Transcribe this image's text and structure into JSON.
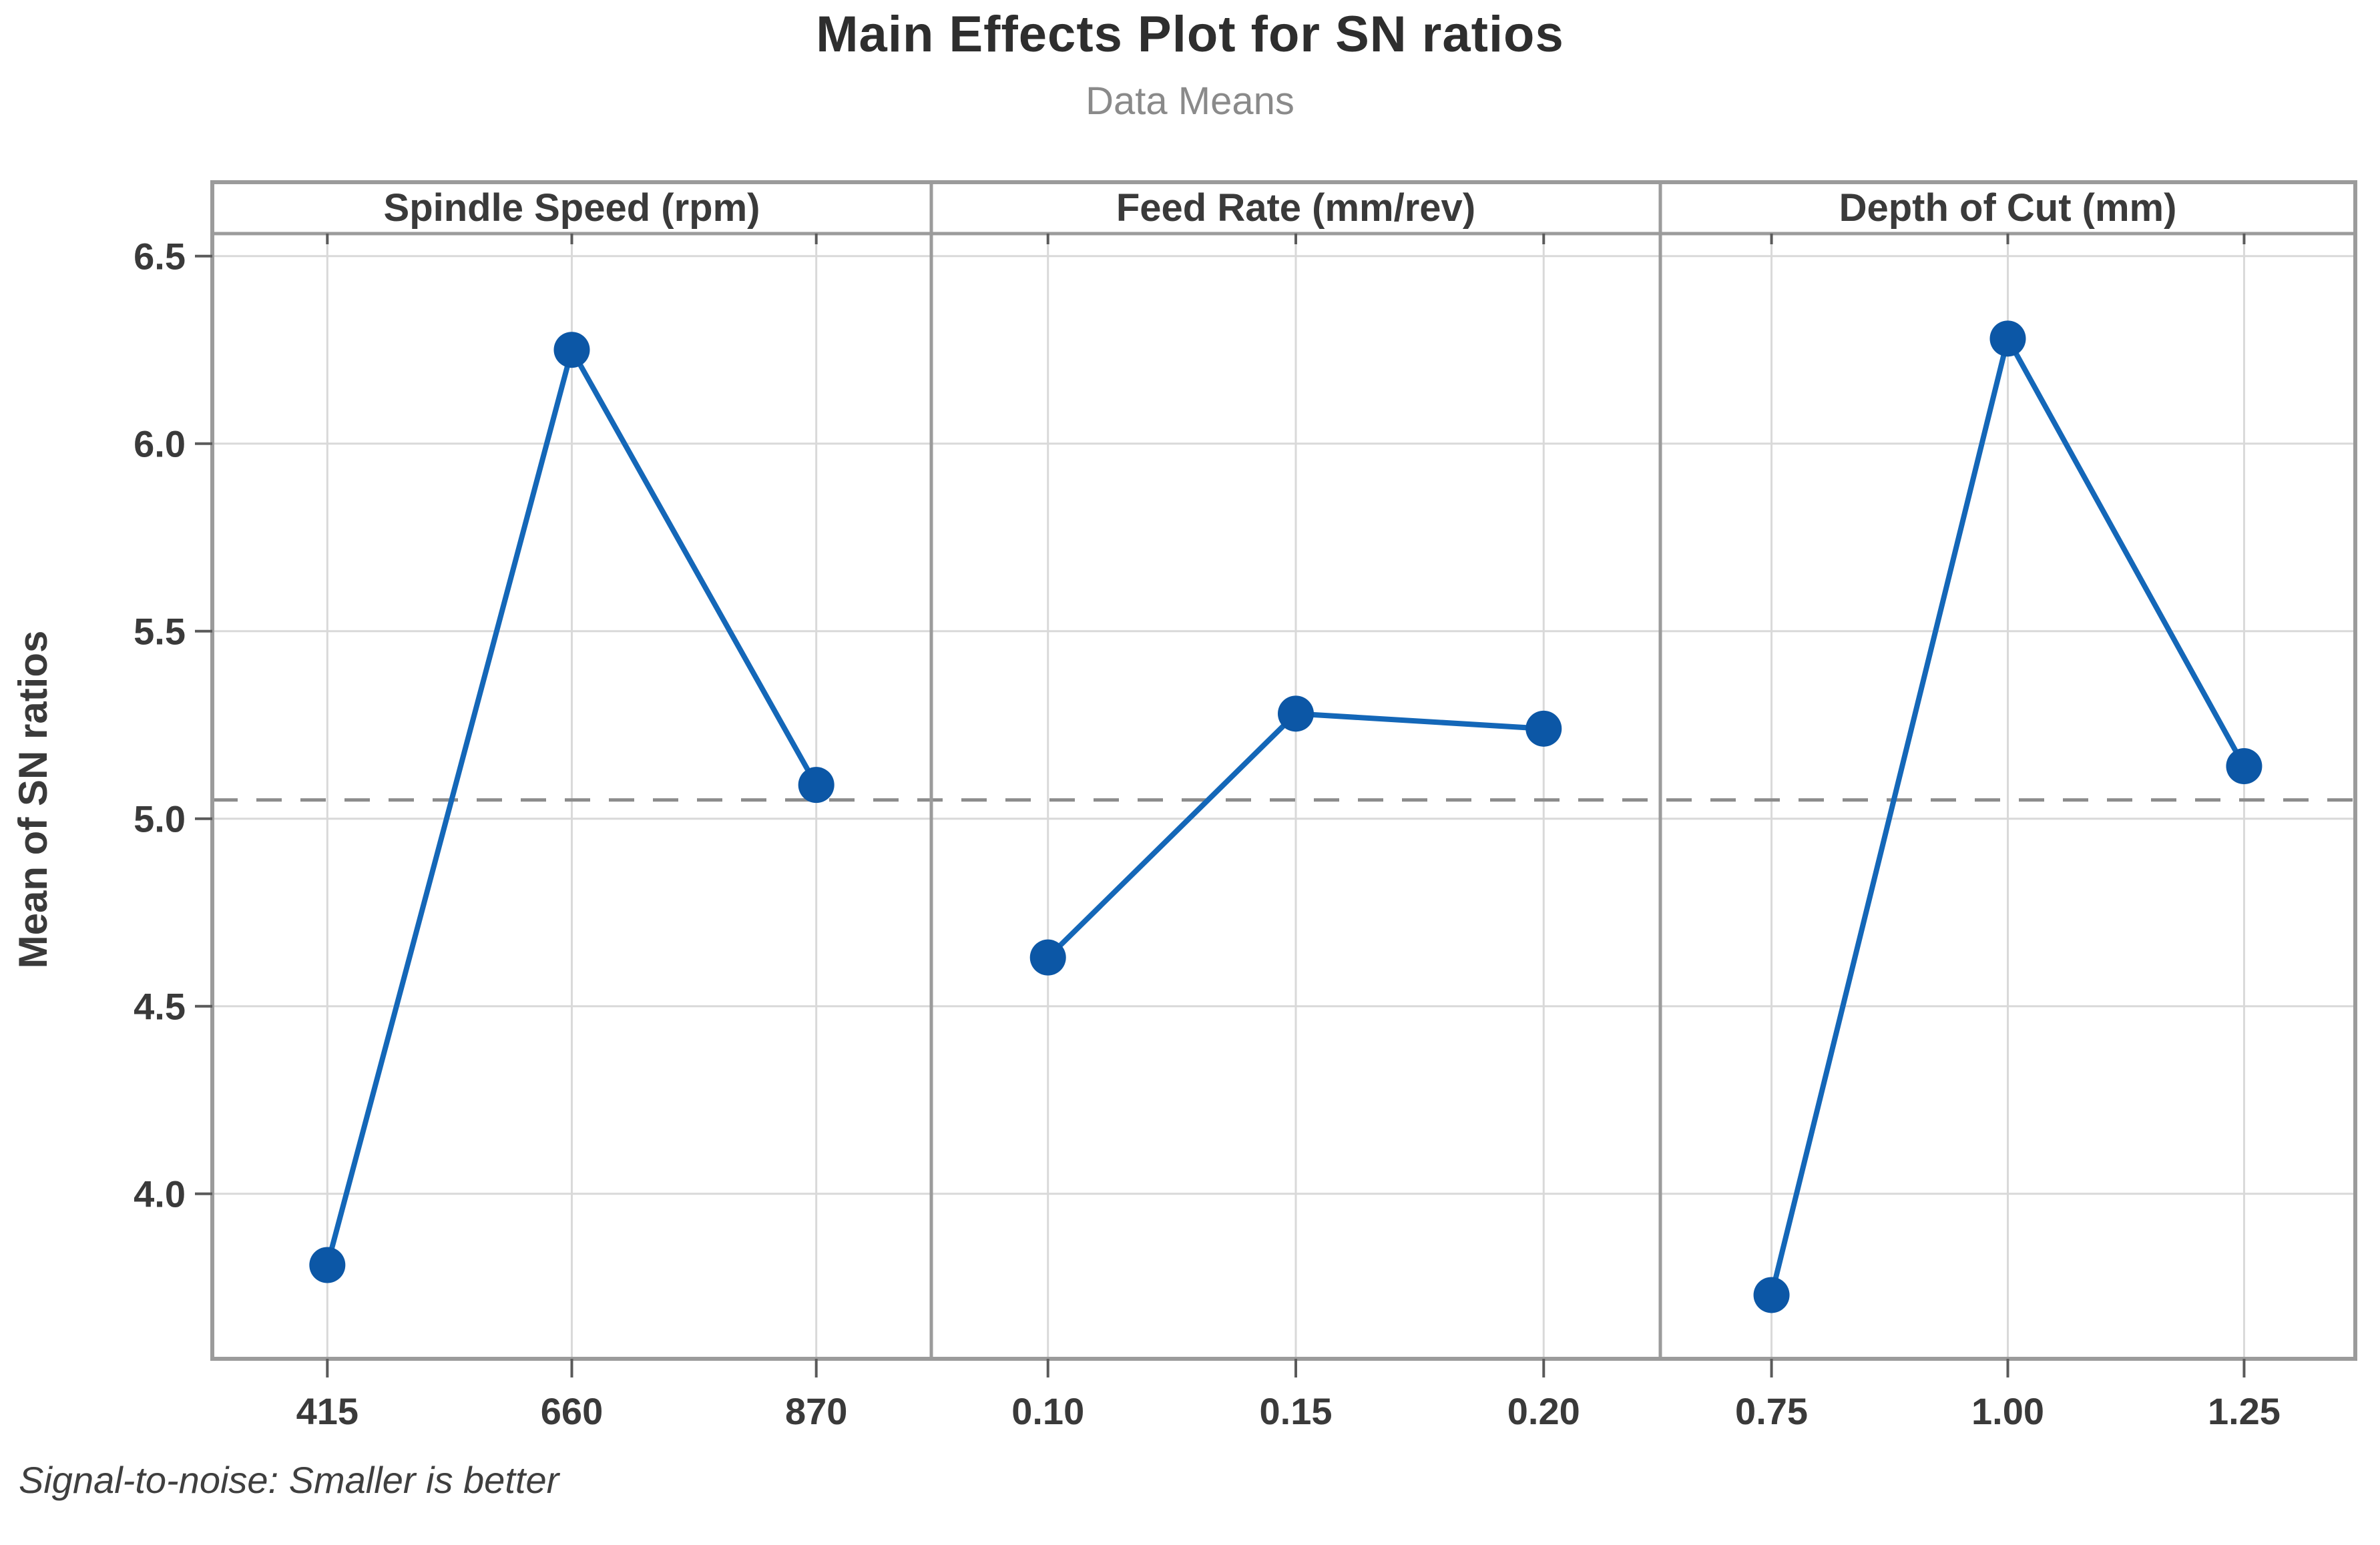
{
  "title": "Main Effects Plot for SN ratios",
  "subtitle": "Data Means",
  "footer": "Signal-to-noise: Smaller is better",
  "y_axis": {
    "label": "Mean of SN ratios"
  },
  "colors": {
    "line": "#1467b8",
    "marker": "#0c57a6",
    "grid": "#d9d9d9",
    "frame": "#9b9b9b",
    "tick": "#5a5a5a",
    "reference": "#8c8c8c",
    "title": "#2e2e2e",
    "subtitle": "#8a8a8a",
    "text": "#3a3a3a"
  },
  "chart_data": {
    "type": "line",
    "title": "Main Effects Plot for SN ratios",
    "subtitle": "Data Means",
    "ylabel": "Mean of SN ratios",
    "ylim": [
      3.56,
      6.56
    ],
    "yticks": [
      6.5,
      6.0,
      5.5,
      5.0,
      4.5,
      4.0
    ],
    "reference_line": 5.05,
    "reference_line_meaning": "overall mean of SN ratios",
    "grid": true,
    "legend": "none",
    "panels": [
      {
        "label": "Spindle Speed (rpm)",
        "categories": [
          "415",
          "660",
          "870"
        ],
        "values": [
          3.81,
          6.25,
          5.09
        ]
      },
      {
        "label": "Feed Rate (mm/rev)",
        "categories": [
          "0.10",
          "0.15",
          "0.20"
        ],
        "values": [
          4.63,
          5.28,
          5.24
        ]
      },
      {
        "label": "Depth of Cut (mm)",
        "categories": [
          "0.75",
          "1.00",
          "1.25"
        ],
        "values": [
          3.73,
          6.28,
          5.14
        ]
      }
    ],
    "footnote": "Signal-to-noise: Smaller is better"
  }
}
